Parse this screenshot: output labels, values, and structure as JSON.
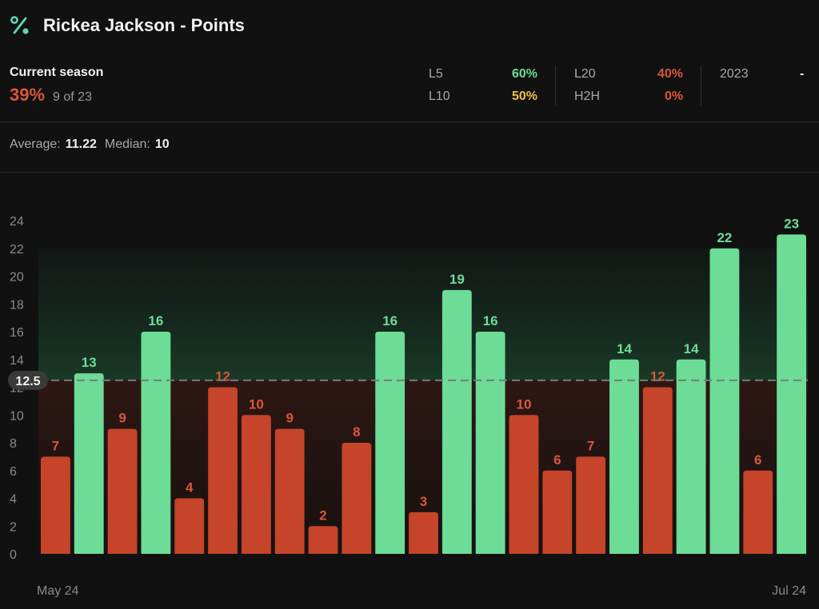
{
  "header": {
    "title": "Rickea Jackson - Points",
    "icon": "percent-icon",
    "icon_color": "#5fd4b8"
  },
  "season": {
    "label": "Current season",
    "pct": "39%",
    "count": "9 of 23"
  },
  "splits": [
    {
      "label": "L5",
      "value": "60%",
      "color": "#6ddc96"
    },
    {
      "label": "L10",
      "value": "50%",
      "color": "#f0c04a"
    },
    {
      "label": "L20",
      "value": "40%",
      "color": "#d9573a"
    },
    {
      "label": "H2H",
      "value": "0%",
      "color": "#d9573a"
    },
    {
      "label": "2023",
      "value": "-",
      "color": "#f2f2f2"
    }
  ],
  "averages": {
    "average_label": "Average:",
    "average_value": "11.22",
    "median_label": "Median:",
    "median_value": "10"
  },
  "chart_data": {
    "type": "bar",
    "values": [
      7,
      13,
      9,
      16,
      4,
      12,
      10,
      9,
      2,
      8,
      16,
      3,
      19,
      16,
      10,
      6,
      7,
      14,
      12,
      14,
      22,
      6,
      23
    ],
    "line": 12.5,
    "line_label": "12.5",
    "ylim": [
      0,
      24
    ],
    "yticks": [
      0,
      2,
      4,
      6,
      8,
      10,
      12,
      14,
      16,
      18,
      20,
      22,
      24
    ],
    "x_start_label": "May 24",
    "x_end_label": "Jul 24",
    "colors": {
      "over": "#6ddc96",
      "under": "#c5442a",
      "under_label": "#d9573a"
    },
    "grid": false
  }
}
